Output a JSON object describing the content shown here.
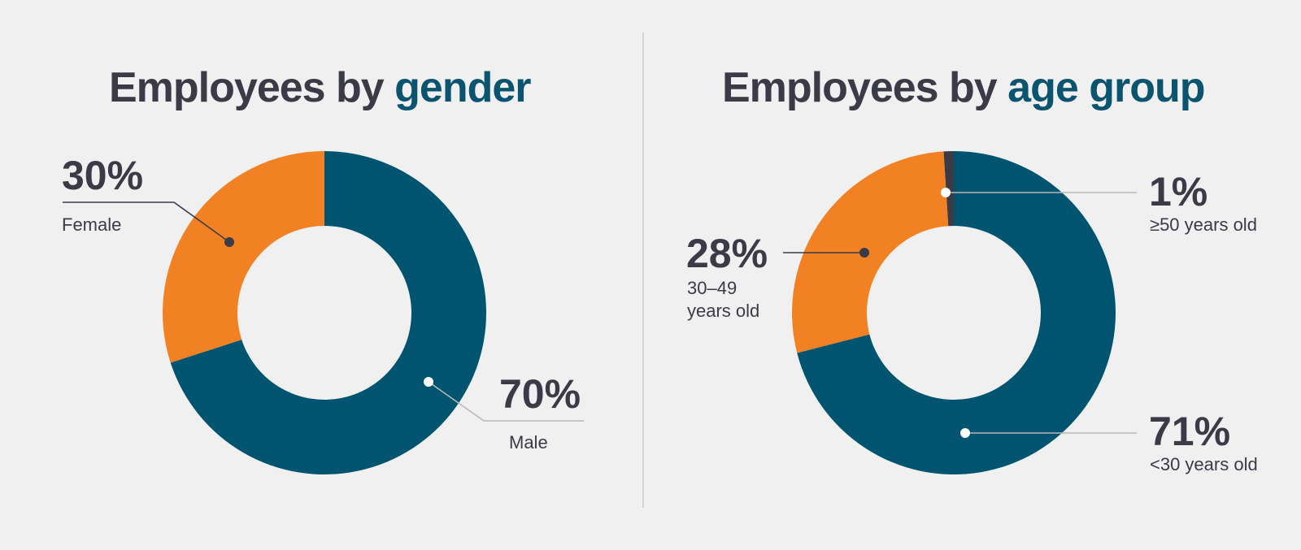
{
  "titles": {
    "left": {
      "prefix": "Employees by ",
      "accent": "gender"
    },
    "right": {
      "prefix": "Employees by ",
      "accent": "age group"
    }
  },
  "colors": {
    "teal": "#005470",
    "orange": "#f28123",
    "dark": "#3a3b47",
    "title_accent": "#0b5470"
  },
  "chart_data": [
    {
      "type": "pie",
      "donut": true,
      "title": "Employees by gender",
      "slices": [
        {
          "name": "Male",
          "value": 70,
          "label": "70%",
          "color": "#005470"
        },
        {
          "name": "Female",
          "value": 30,
          "label": "30%",
          "color": "#f28123"
        }
      ]
    },
    {
      "type": "pie",
      "donut": true,
      "title": "Employees by age group",
      "slices": [
        {
          "name": "<30 years old",
          "value": 71,
          "label": "71%",
          "color": "#005470"
        },
        {
          "name": "30–49 years old",
          "value": 28,
          "label": "28%",
          "color": "#f28123",
          "name_lines": [
            "30–49",
            "years old"
          ]
        },
        {
          "name": "≥50 years old",
          "value": 1,
          "label": "1%",
          "color": "#3a3b47"
        }
      ]
    }
  ]
}
